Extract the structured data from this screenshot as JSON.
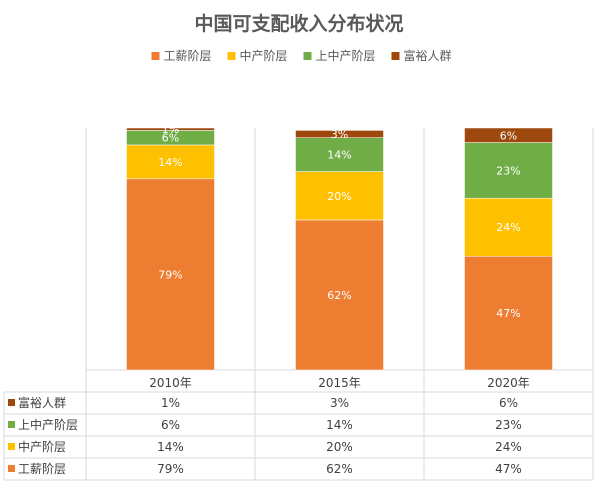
{
  "chart_data": {
    "type": "bar",
    "stacked": true,
    "percent": true,
    "title": "中国可支配收入分布状况",
    "categories": [
      "2010年",
      "2015年",
      "2020年"
    ],
    "series": [
      {
        "name": "工薪阶层",
        "color": "#ED7D31",
        "values": [
          79,
          62,
          47
        ]
      },
      {
        "name": "中产阶层",
        "color": "#FFC000",
        "values": [
          14,
          20,
          24
        ]
      },
      {
        "name": "上中产阶层",
        "color": "#70AD47",
        "values": [
          6,
          14,
          23
        ]
      },
      {
        "name": "富裕人群",
        "color": "#9E480E",
        "values": [
          1,
          3,
          6
        ]
      }
    ],
    "ylim": [
      0,
      100
    ],
    "legend_position": "top",
    "data_table": true,
    "table_row_order": [
      "富裕人群",
      "上中产阶层",
      "中产阶层",
      "工薪阶层"
    ],
    "value_suffix": "%"
  }
}
